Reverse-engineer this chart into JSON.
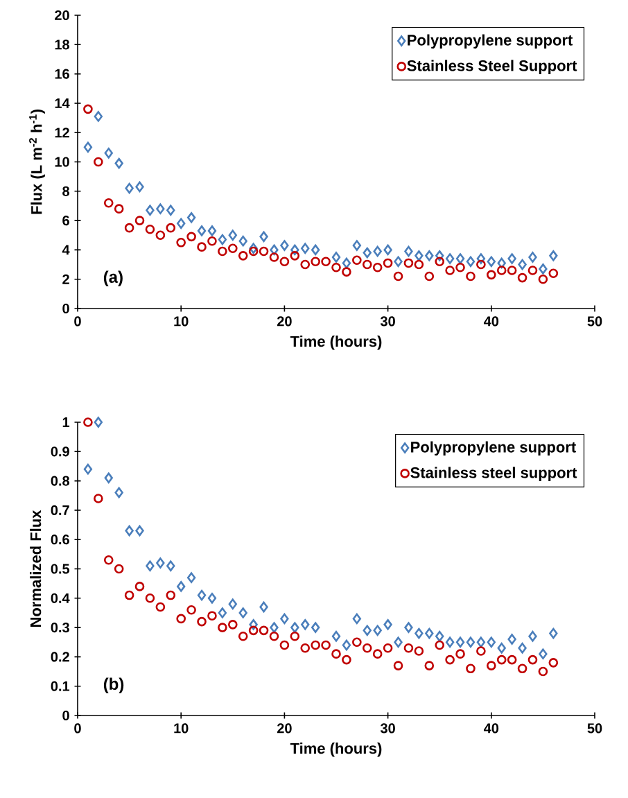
{
  "chart_data": [
    {
      "type": "scatter",
      "xlabel": "Time (hours)",
      "ylabel": "Flux (L m$^{-2}$ h$^{-1}$)",
      "legend": "top right",
      "annotations": [
        "(a)"
      ],
      "x": [
        1,
        2,
        3,
        4,
        5,
        6,
        7,
        8,
        9,
        10,
        11,
        12,
        13,
        14,
        15,
        16,
        17,
        18,
        19,
        20,
        21,
        22,
        23,
        24,
        25,
        26,
        27,
        28,
        29,
        30,
        31,
        32,
        33,
        34,
        35,
        36,
        37,
        38,
        39,
        40,
        41,
        42,
        43,
        44,
        45,
        46
      ],
      "xlim": [
        0,
        50
      ],
      "xticks": [
        0,
        10,
        20,
        30,
        40,
        50
      ],
      "ylim": [
        0,
        20
      ],
      "yticks": [
        0,
        2,
        4,
        6,
        8,
        10,
        12,
        14,
        16,
        18,
        20
      ],
      "series": [
        {
          "name": "Polypropylene support",
          "color": "#4a7ebb",
          "marker": "diamond",
          "values": [
            11.0,
            13.1,
            10.6,
            9.9,
            8.2,
            8.3,
            6.7,
            6.8,
            6.7,
            5.8,
            6.2,
            5.3,
            5.3,
            4.7,
            5.0,
            4.6,
            4.1,
            4.9,
            4.0,
            4.3,
            4.0,
            4.1,
            4.0,
            null,
            3.5,
            3.1,
            4.3,
            3.8,
            3.9,
            4.0,
            3.2,
            3.9,
            3.6,
            3.6,
            3.6,
            3.4,
            3.4,
            3.2,
            3.4,
            3.2,
            3.1,
            3.4,
            3.0,
            3.5,
            2.7,
            3.6
          ]
        },
        {
          "name": "Stainless Steel Support",
          "color": "#c00000",
          "marker": "circle",
          "values": [
            13.6,
            10.0,
            7.2,
            6.8,
            5.5,
            6.0,
            5.4,
            5.0,
            5.5,
            4.5,
            4.9,
            4.2,
            4.6,
            3.9,
            4.1,
            3.6,
            3.9,
            3.9,
            3.5,
            3.2,
            3.6,
            3.0,
            3.2,
            3.2,
            2.8,
            2.5,
            3.3,
            3.0,
            2.8,
            3.1,
            2.2,
            3.1,
            3.0,
            2.2,
            3.2,
            2.6,
            2.8,
            2.2,
            3.0,
            2.3,
            2.6,
            2.6,
            2.1,
            2.6,
            2.0,
            2.4
          ]
        }
      ]
    },
    {
      "type": "scatter",
      "xlabel": "Time (hours)",
      "ylabel": "Normalized Flux",
      "legend": "top right",
      "annotations": [
        "(b)"
      ],
      "x": [
        1,
        2,
        3,
        4,
        5,
        6,
        7,
        8,
        9,
        10,
        11,
        12,
        13,
        14,
        15,
        16,
        17,
        18,
        19,
        20,
        21,
        22,
        23,
        24,
        25,
        26,
        27,
        28,
        29,
        30,
        31,
        32,
        33,
        34,
        35,
        36,
        37,
        38,
        39,
        40,
        41,
        42,
        43,
        44,
        45,
        46
      ],
      "xlim": [
        0,
        50
      ],
      "xticks": [
        0,
        10,
        20,
        30,
        40,
        50
      ],
      "ylim": [
        0,
        1
      ],
      "yticks": [
        0,
        0.1,
        0.2,
        0.3,
        0.4,
        0.5,
        0.6,
        0.7,
        0.8,
        0.9,
        1
      ],
      "series": [
        {
          "name": "Polypropylene support",
          "color": "#4a7ebb",
          "marker": "diamond",
          "values": [
            0.84,
            1.0,
            0.81,
            0.76,
            0.63,
            0.63,
            0.51,
            0.52,
            0.51,
            0.44,
            0.47,
            0.41,
            0.4,
            0.35,
            0.38,
            0.35,
            0.31,
            0.37,
            0.3,
            0.33,
            0.3,
            0.31,
            0.3,
            null,
            0.27,
            0.24,
            0.33,
            0.29,
            0.29,
            0.31,
            0.25,
            0.3,
            0.28,
            0.28,
            0.27,
            0.25,
            0.25,
            0.25,
            0.25,
            0.25,
            0.23,
            0.26,
            0.23,
            0.27,
            0.21,
            0.28
          ]
        },
        {
          "name": "Stainless steel support",
          "color": "#c00000",
          "marker": "circle",
          "values": [
            1.0,
            0.74,
            0.53,
            0.5,
            0.41,
            0.44,
            0.4,
            0.37,
            0.41,
            0.33,
            0.36,
            0.32,
            0.34,
            0.3,
            0.31,
            0.27,
            0.29,
            0.29,
            0.27,
            0.24,
            0.27,
            0.23,
            0.24,
            0.24,
            0.21,
            0.19,
            0.25,
            0.23,
            0.21,
            0.23,
            0.17,
            0.23,
            0.22,
            0.17,
            0.24,
            0.19,
            0.21,
            0.16,
            0.22,
            0.17,
            0.19,
            0.19,
            0.16,
            0.19,
            0.15,
            0.18
          ]
        }
      ]
    }
  ]
}
